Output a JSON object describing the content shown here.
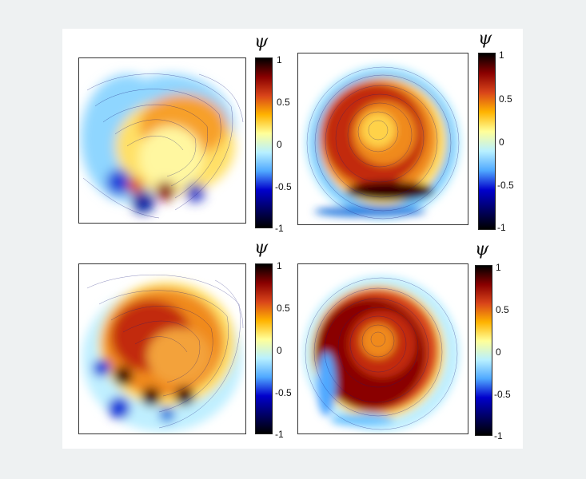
{
  "colorbar": {
    "label": "ψ",
    "ticks": [
      "1",
      "0.5",
      "0",
      "-0.5",
      "-1"
    ],
    "stops": [
      "#000000",
      "#000066",
      "#0000cc",
      "#4fa8ff",
      "#b8f0ff",
      "#ffff99",
      "#ffb300",
      "#d9451a",
      "#8a0000",
      "#000000"
    ]
  },
  "chart_data": [
    {
      "type": "heatmap",
      "panel": "top-left",
      "colorbar_label": "ψ",
      "colorbar_ticks": [
        "1",
        "0.5",
        "0",
        "-0.5",
        "-1"
      ],
      "zlim": [
        -1,
        1
      ],
      "overlay": "streamlines",
      "core": [
        {
          "psi": 0.55
        },
        {
          "psi": -0.9
        },
        {
          "psi": -0.95
        },
        {
          "psi": 0.95
        },
        {
          "psi": -0.7
        }
      ]
    },
    {
      "type": "heatmap",
      "panel": "top-right",
      "colorbar_label": "ψ",
      "colorbar_ticks": [
        "1",
        "0.5",
        "0",
        "-0.5",
        "-1"
      ],
      "zlim": [
        -1,
        1
      ],
      "overlay": "streamlines",
      "core": [
        {
          "psi": 0.8
        },
        {
          "psi": -0.4
        }
      ]
    },
    {
      "type": "heatmap",
      "panel": "bottom-left",
      "colorbar_label": "ψ",
      "colorbar_ticks": [
        "1",
        "0.5",
        "0",
        "-0.5",
        "-1"
      ],
      "zlim": [
        -1,
        1
      ],
      "overlay": "streamlines",
      "core": [
        {
          "psi": 0.75
        },
        {
          "psi": -0.7
        },
        {
          "psi": 0.95
        }
      ]
    },
    {
      "type": "heatmap",
      "panel": "bottom-right",
      "colorbar_label": "ψ",
      "colorbar_ticks": [
        "1",
        "0.5",
        "0",
        "-0.5",
        "-1"
      ],
      "zlim": [
        -1,
        1
      ],
      "overlay": "streamlines",
      "core": [
        {
          "psi": 0.85
        },
        {
          "psi": -0.45
        }
      ]
    }
  ]
}
